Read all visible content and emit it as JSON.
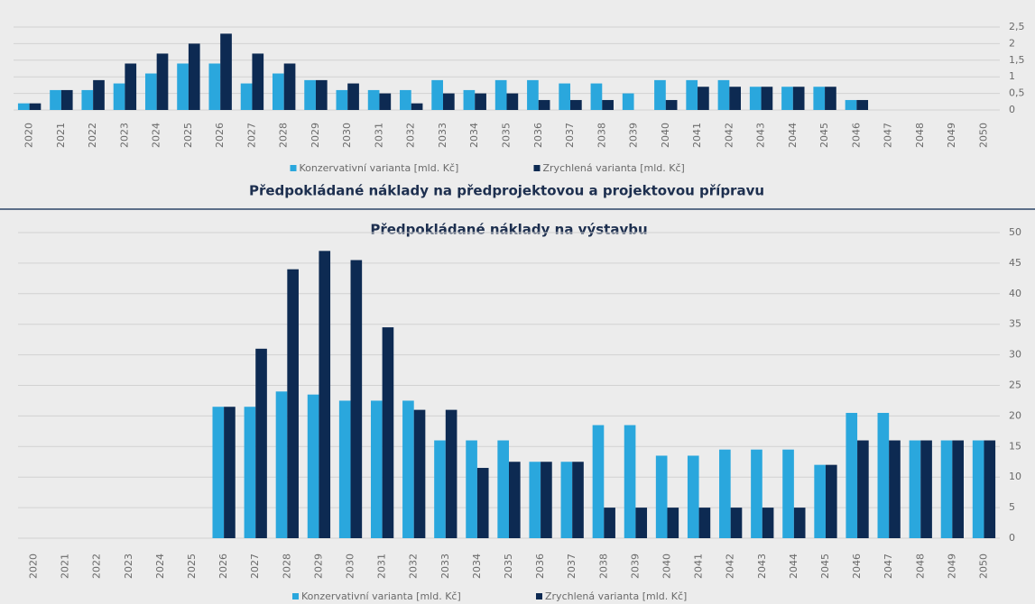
{
  "chart_data": [
    {
      "type": "bar",
      "title": "Předpokládané náklady na předprojektovou a projektovou přípravu",
      "categories": [
        "2020",
        "2021",
        "2022",
        "2023",
        "2024",
        "2025",
        "2026",
        "2027",
        "2028",
        "2029",
        "2030",
        "2031",
        "2032",
        "2033",
        "2034",
        "2035",
        "2036",
        "2037",
        "2038",
        "2039",
        "2040",
        "2041",
        "2042",
        "2043",
        "2044",
        "2045",
        "2046",
        "2047",
        "2048",
        "2049",
        "2050"
      ],
      "series": [
        {
          "name": "Konzervativní varianta [mld. Kč]",
          "color": "#2aa7dd",
          "values": [
            0.2,
            0.6,
            0.6,
            0.8,
            1.1,
            1.4,
            1.4,
            0.8,
            1.1,
            0.9,
            0.6,
            0.6,
            0.6,
            0.9,
            0.6,
            0.9,
            0.9,
            0.8,
            0.8,
            0.5,
            0.9,
            0.9,
            0.9,
            0.7,
            0.7,
            0.7,
            0.3,
            0,
            0,
            0,
            0
          ]
        },
        {
          "name": "Zrychlená varianta [mld. Kč]",
          "color": "#0d2a52",
          "values": [
            0.2,
            0.6,
            0.9,
            1.4,
            1.7,
            2.0,
            2.3,
            1.7,
            1.4,
            0.9,
            0.8,
            0.5,
            0.2,
            0.5,
            0.5,
            0.5,
            0.3,
            0.3,
            0.3,
            0,
            0.3,
            0.7,
            0.7,
            0.7,
            0.7,
            0.7,
            0.3,
            0,
            0,
            0,
            0
          ]
        }
      ],
      "ylim": [
        0,
        2.5
      ],
      "yticks": [
        0,
        {
          "value": 0.5,
          "label": "0,5"
        },
        1,
        {
          "value": 1.5,
          "label": "1,5"
        },
        2,
        {
          "value": 2.5,
          "label": "2,5"
        }
      ],
      "grid": true
    },
    {
      "type": "bar",
      "title": "Předpokládané náklady na výstavbu",
      "categories": [
        "2020",
        "2021",
        "2022",
        "2023",
        "2024",
        "2025",
        "2026",
        "2027",
        "2028",
        "2029",
        "2030",
        "2031",
        "2032",
        "2033",
        "2034",
        "2035",
        "2036",
        "2037",
        "2038",
        "2039",
        "2040",
        "2041",
        "2042",
        "2043",
        "2044",
        "2045",
        "2046",
        "2047",
        "2048",
        "2049",
        "2050"
      ],
      "series": [
        {
          "name": "Konzervativní varianta [mld. Kč]",
          "color": "#2aa7dd",
          "values": [
            0,
            0,
            0,
            0,
            0,
            0,
            21.5,
            21.5,
            24,
            23.5,
            22.5,
            22.5,
            22.5,
            16,
            16,
            16,
            12.5,
            12.5,
            18.5,
            18.5,
            13.5,
            13.5,
            14.5,
            14.5,
            14.5,
            12,
            20.5,
            20.5,
            16,
            16,
            16
          ]
        },
        {
          "name": "Zrychlená varianta [mld. Kč]",
          "color": "#0d2a52",
          "values": [
            0,
            0,
            0,
            0,
            0,
            0,
            21.5,
            31,
            44,
            47,
            45.5,
            34.5,
            21,
            21,
            11.5,
            12.5,
            12.5,
            12.5,
            5,
            5,
            5,
            5,
            5,
            5,
            5,
            12,
            16,
            16,
            16,
            16,
            16
          ]
        }
      ],
      "ylim": [
        0,
        50
      ],
      "yticks": [
        0,
        5,
        10,
        15,
        20,
        25,
        30,
        35,
        40,
        45,
        50
      ],
      "grid": true
    }
  ]
}
